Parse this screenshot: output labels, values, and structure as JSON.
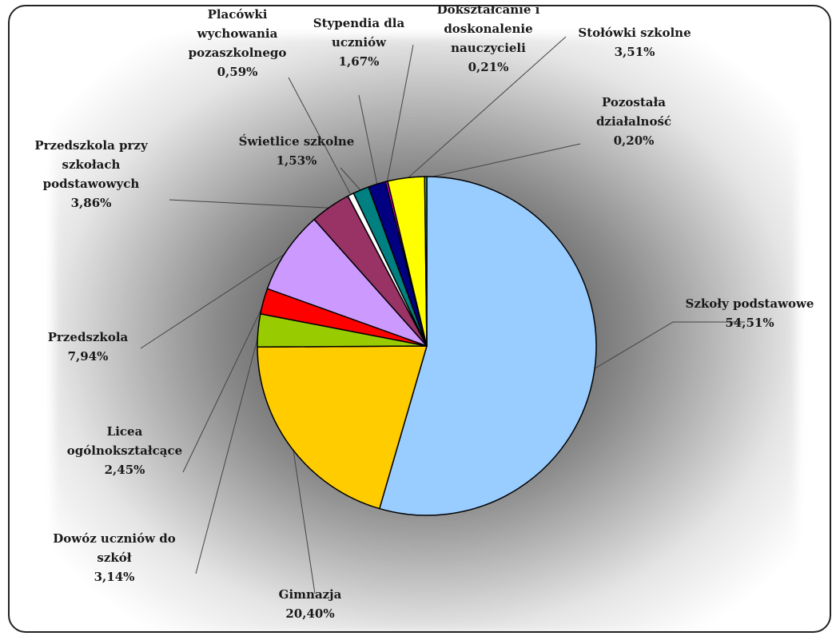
{
  "chart_data": {
    "type": "pie",
    "title": "",
    "legend": "none",
    "slices": [
      {
        "label_lines": [
          "Szkoły podstawowe"
        ],
        "value_text": "54,51%",
        "value": 54.51,
        "color": "#99CCFF"
      },
      {
        "label_lines": [
          "Gimnazja"
        ],
        "value_text": "20,40%",
        "value": 20.4,
        "color": "#FFCC00"
      },
      {
        "label_lines": [
          "Dowóz uczniów do",
          "szkół"
        ],
        "value_text": "3,14%",
        "value": 3.14,
        "color": "#99CC00"
      },
      {
        "label_lines": [
          "Licea",
          "ogólnokształcące"
        ],
        "value_text": "2,45%",
        "value": 2.45,
        "color": "#FF0000"
      },
      {
        "label_lines": [
          "Przedszkola"
        ],
        "value_text": "7,94%",
        "value": 7.94,
        "color": "#CC99FF"
      },
      {
        "label_lines": [
          "Przedszkola przy",
          "szkołach",
          "podstawowych"
        ],
        "value_text": "3,86%",
        "value": 3.86,
        "color": "#993366"
      },
      {
        "label_lines": [
          "Placówki",
          "wychowania",
          "pozaszkolnego"
        ],
        "value_text": "0,59%",
        "value": 0.59,
        "color": "#FFFFFF"
      },
      {
        "label_lines": [
          "Świetlice szkolne"
        ],
        "value_text": "1,53%",
        "value": 1.53,
        "color": "#008080"
      },
      {
        "label_lines": [
          "Stypendia dla",
          "uczniów"
        ],
        "value_text": "1,67%",
        "value": 1.67,
        "color": "#000080"
      },
      {
        "label_lines": [
          "Dokształcanie i",
          "doskonalenie",
          "nauczycieli"
        ],
        "value_text": "0,21%",
        "value": 0.21,
        "color": "#FF00FF"
      },
      {
        "label_lines": [
          "Stołówki szkolne"
        ],
        "value_text": "3,51%",
        "value": 3.51,
        "color": "#FFFF00"
      },
      {
        "label_lines": [
          "Pozostała",
          "działalność"
        ],
        "value_text": "0,20%",
        "value": 0.2,
        "color": "#33CCCC"
      }
    ]
  }
}
